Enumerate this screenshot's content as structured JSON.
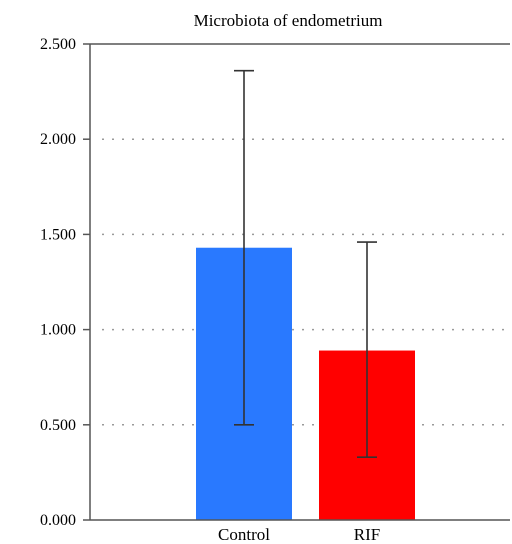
{
  "chart_data": {
    "type": "bar",
    "title": "Microbiota of endometrium",
    "xlabel": "",
    "ylabel": "",
    "categories": [
      "Control",
      "RIF"
    ],
    "values": [
      1.43,
      0.89
    ],
    "error_low": [
      0.5,
      0.33
    ],
    "error_high": [
      2.36,
      1.46
    ],
    "colors": [
      "#2979ff",
      "#ff0000"
    ],
    "ylim": [
      0,
      2.5
    ],
    "yticks": [
      0,
      0.5,
      1.0,
      1.5,
      2.0,
      2.5
    ],
    "ytick_labels": [
      "0.000",
      "0.500",
      "1.000",
      "1.500",
      "2.000",
      "2.500"
    ],
    "grid": true,
    "legend": "none"
  }
}
